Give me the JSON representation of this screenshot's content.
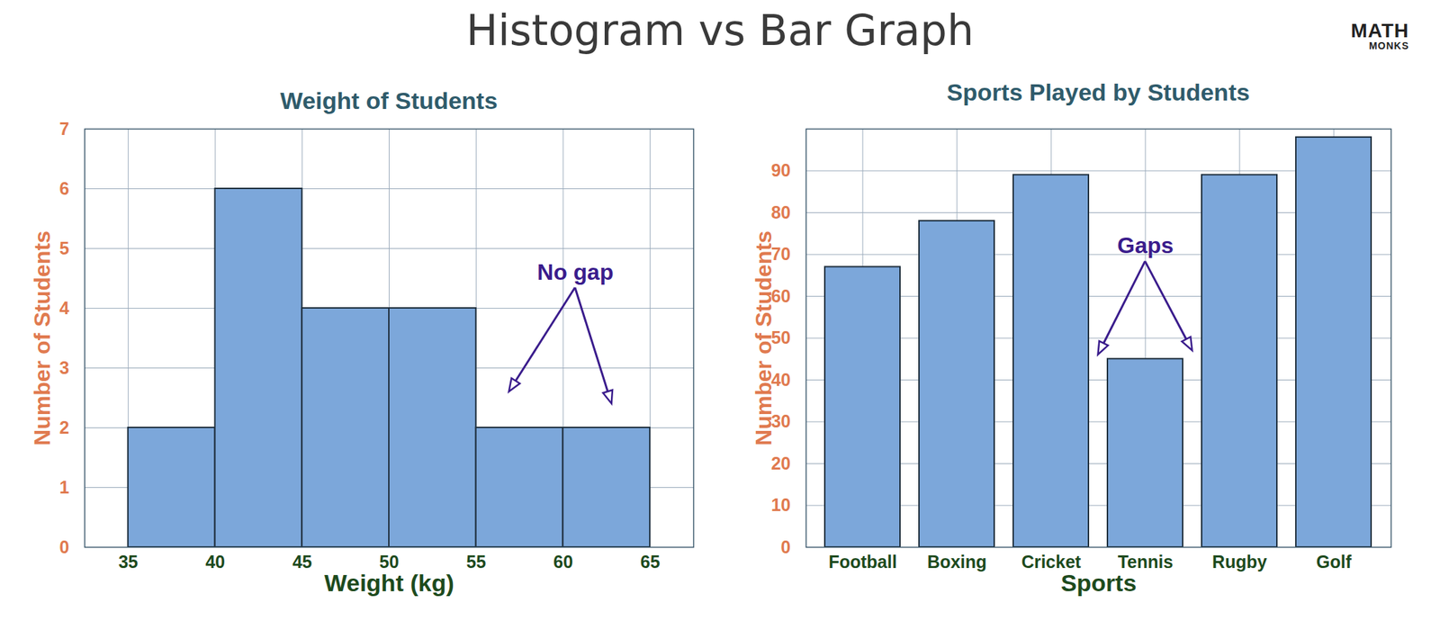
{
  "header": {
    "title": "Histogram vs Bar Graph",
    "logo": [
      "MATH",
      "MONKS"
    ]
  },
  "chart_data": [
    {
      "type": "histogram",
      "title": "Weight of Students",
      "x_label": "Weight (kg)",
      "y_label": "Number of Students",
      "bins": [
        35,
        40,
        45,
        50,
        55,
        60,
        65
      ],
      "values": [
        2,
        6,
        4,
        4,
        2,
        2
      ],
      "color": "#7ca7da",
      "xlim": [
        32.5,
        67.5
      ],
      "xticks": [
        35,
        40,
        45,
        50,
        55,
        60,
        65
      ],
      "ylim": [
        0,
        7
      ],
      "yticks": [
        0,
        1,
        2,
        3,
        4,
        5,
        6,
        7
      ],
      "grid": true,
      "annotations": [
        {
          "text": "No gap",
          "x": 60.7,
          "y": 4.6,
          "arrows": [
            {
              "x": 56.9,
              "y": 2.6
            },
            {
              "x": 62.8,
              "y": 2.4
            }
          ]
        }
      ]
    },
    {
      "type": "bar",
      "title": "Sports Played by Students",
      "x_label": "Sports",
      "y_label": "Number of Students",
      "categories": [
        "Football",
        "Boxing",
        "Cricket",
        "Tennis",
        "Rugby",
        "Golf"
      ],
      "values": [
        67,
        78,
        89,
        45,
        89,
        98
      ],
      "color": "#7ca7da",
      "ylim": [
        0,
        100
      ],
      "yticks": [
        0,
        10,
        20,
        30,
        40,
        50,
        60,
        70,
        80,
        90
      ],
      "grid": true,
      "annotations": [
        {
          "text": "Gaps",
          "x": "Tennis",
          "y": 72,
          "arrows": [
            {
              "between": [
                "Cricket",
                "Tennis"
              ],
              "y": 46
            },
            {
              "between": [
                "Tennis",
                "Rugby"
              ],
              "y": 47
            }
          ]
        }
      ]
    }
  ]
}
